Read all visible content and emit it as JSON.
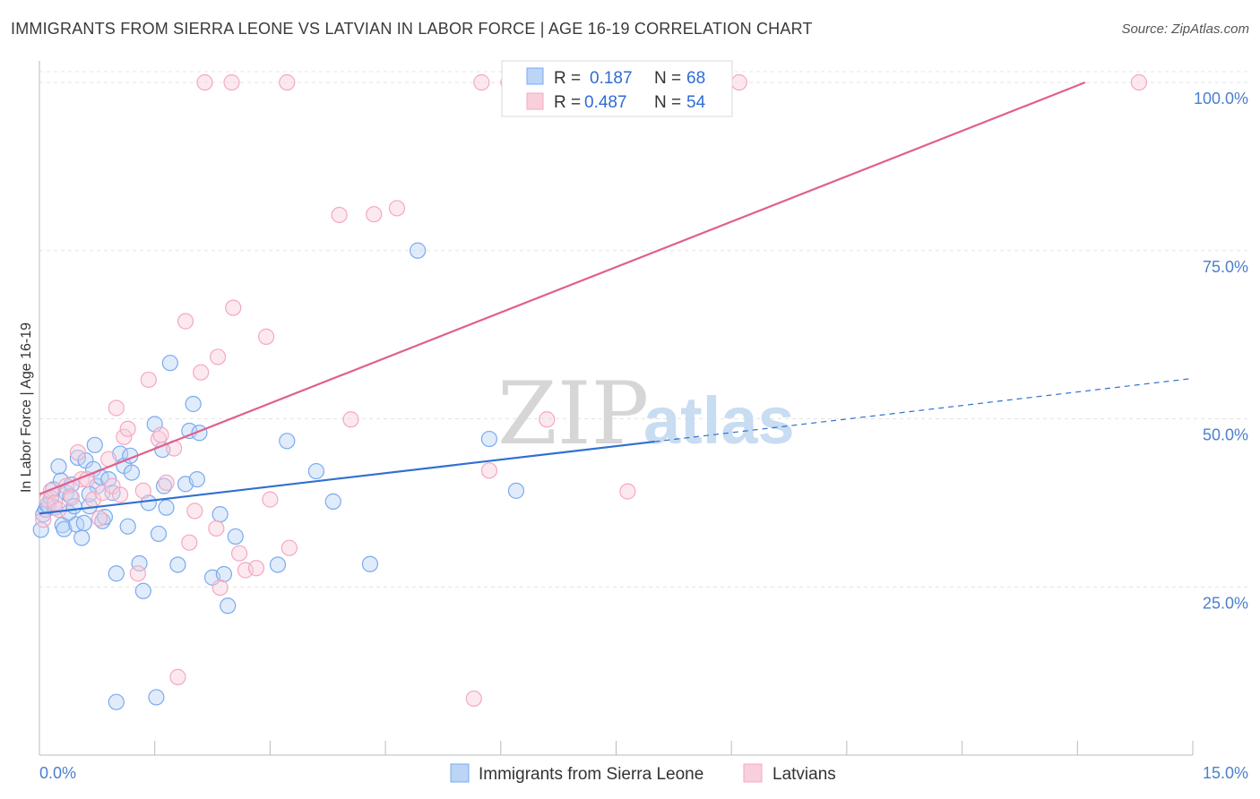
{
  "header": {
    "title": "IMMIGRANTS FROM SIERRA LEONE VS LATVIAN IN LABOR FORCE | AGE 16-19 CORRELATION CHART",
    "source": "Source: ZipAtlas.com"
  },
  "watermark": {
    "part1": "ZIP",
    "part2": "atlas"
  },
  "chart_data": {
    "type": "scatter",
    "title": "IMMIGRANTS FROM SIERRA LEONE VS LATVIAN IN LABOR FORCE | AGE 16-19 CORRELATION CHART",
    "ylabel": "In Labor Force | Age 16-19",
    "xlim": [
      0,
      15
    ],
    "ylim": [
      0,
      102
    ],
    "x_tick_labels": [
      "0.0%",
      "15.0%"
    ],
    "y_ticks": [
      25,
      50,
      75,
      100
    ],
    "y_tick_labels": [
      "25.0%",
      "50.0%",
      "75.0%",
      "100.0%"
    ],
    "grid": true,
    "legend_position": "top-center",
    "series": [
      {
        "name": "Immigrants from Sierra Leone",
        "color": "#7aaaf0",
        "line_color": "#2f70d0",
        "R": "0.187",
        "N": "68",
        "trend": {
          "x0": 0,
          "y0": 35.9,
          "x1": 8.0,
          "y1": 46.6,
          "dash_to_x": 15.0,
          "dash_to_y": 56.0
        },
        "points": [
          [
            0.02,
            33.5
          ],
          [
            0.05,
            35.8
          ],
          [
            0.08,
            36.5
          ],
          [
            0.12,
            37.0
          ],
          [
            0.15,
            38.2
          ],
          [
            0.18,
            39.5
          ],
          [
            0.2,
            36.8
          ],
          [
            0.25,
            42.9
          ],
          [
            0.28,
            40.8
          ],
          [
            0.3,
            34.2
          ],
          [
            0.32,
            33.6
          ],
          [
            0.35,
            39.0
          ],
          [
            0.38,
            36.0
          ],
          [
            0.4,
            38.5
          ],
          [
            0.45,
            37.0
          ],
          [
            0.48,
            34.3
          ],
          [
            0.5,
            44.2
          ],
          [
            0.55,
            32.3
          ],
          [
            0.58,
            34.5
          ],
          [
            0.6,
            43.8
          ],
          [
            0.65,
            37.0
          ],
          [
            0.7,
            42.5
          ],
          [
            0.72,
            46.1
          ],
          [
            0.75,
            40.0
          ],
          [
            0.8,
            41.3
          ],
          [
            0.82,
            34.8
          ],
          [
            0.85,
            35.4
          ],
          [
            0.9,
            41.0
          ],
          [
            0.95,
            39.0
          ],
          [
            1.0,
            27.0
          ],
          [
            1.05,
            44.8
          ],
          [
            1.1,
            43.0
          ],
          [
            1.15,
            34.0
          ],
          [
            1.18,
            44.5
          ],
          [
            1.2,
            42.0
          ],
          [
            1.3,
            28.5
          ],
          [
            1.35,
            24.4
          ],
          [
            1.42,
            37.5
          ],
          [
            1.5,
            49.2
          ],
          [
            1.52,
            8.6
          ],
          [
            1.55,
            32.9
          ],
          [
            1.6,
            45.4
          ],
          [
            1.62,
            40.0
          ],
          [
            1.65,
            36.8
          ],
          [
            1.7,
            58.3
          ],
          [
            1.8,
            28.3
          ],
          [
            1.9,
            40.3
          ],
          [
            1.95,
            48.2
          ],
          [
            2.0,
            52.2
          ],
          [
            2.05,
            41.0
          ],
          [
            2.08,
            47.9
          ],
          [
            2.25,
            26.4
          ],
          [
            2.35,
            35.8
          ],
          [
            2.4,
            26.9
          ],
          [
            2.45,
            22.2
          ],
          [
            2.55,
            32.5
          ],
          [
            3.1,
            28.3
          ],
          [
            3.22,
            46.7
          ],
          [
            3.6,
            42.2
          ],
          [
            3.82,
            37.7
          ],
          [
            4.3,
            28.4
          ],
          [
            4.92,
            75.0
          ],
          [
            5.85,
            47.0
          ],
          [
            6.2,
            39.3
          ],
          [
            0.1,
            37.2
          ],
          [
            0.42,
            40.2
          ],
          [
            1.0,
            7.9
          ],
          [
            0.65,
            38.8
          ]
        ]
      },
      {
        "name": "Latvians",
        "color": "#f4a8c0",
        "line_color": "#e0608e",
        "R": "0.487",
        "N": "54",
        "trend": {
          "x0": 0,
          "y0": 38.8,
          "x1": 13.6,
          "y1": 100.0
        },
        "points": [
          [
            0.05,
            35.0
          ],
          [
            0.1,
            38.0
          ],
          [
            0.15,
            39.3
          ],
          [
            0.2,
            37.5
          ],
          [
            0.25,
            36.5
          ],
          [
            0.35,
            40.0
          ],
          [
            0.42,
            38.3
          ],
          [
            0.5,
            45.0
          ],
          [
            0.55,
            41.0
          ],
          [
            0.62,
            41.0
          ],
          [
            0.7,
            38.0
          ],
          [
            0.78,
            35.2
          ],
          [
            0.82,
            39.0
          ],
          [
            0.9,
            44.0
          ],
          [
            0.95,
            40.0
          ],
          [
            1.0,
            51.6
          ],
          [
            1.05,
            38.7
          ],
          [
            1.1,
            47.3
          ],
          [
            1.15,
            48.5
          ],
          [
            1.28,
            27.0
          ],
          [
            1.35,
            39.3
          ],
          [
            1.42,
            55.8
          ],
          [
            1.55,
            47.0
          ],
          [
            1.58,
            47.6
          ],
          [
            1.65,
            40.5
          ],
          [
            1.75,
            45.6
          ],
          [
            1.8,
            11.6
          ],
          [
            1.9,
            64.5
          ],
          [
            1.95,
            31.6
          ],
          [
            2.02,
            36.3
          ],
          [
            2.1,
            56.9
          ],
          [
            2.15,
            100.0
          ],
          [
            2.3,
            33.7
          ],
          [
            2.32,
            59.2
          ],
          [
            2.35,
            24.9
          ],
          [
            2.5,
            100.0
          ],
          [
            2.52,
            66.5
          ],
          [
            2.6,
            30.0
          ],
          [
            2.68,
            27.5
          ],
          [
            2.82,
            27.8
          ],
          [
            2.95,
            62.2
          ],
          [
            3.0,
            38.0
          ],
          [
            3.22,
            100.0
          ],
          [
            3.25,
            30.8
          ],
          [
            3.9,
            80.3
          ],
          [
            4.05,
            49.9
          ],
          [
            4.35,
            80.4
          ],
          [
            4.65,
            81.3
          ],
          [
            5.65,
            8.4
          ],
          [
            5.75,
            100.0
          ],
          [
            5.85,
            42.3
          ],
          [
            6.6,
            49.9
          ],
          [
            7.65,
            39.2
          ],
          [
            9.1,
            100.0
          ]
        ],
        "extra_points": [
          [
            14.3,
            100.0
          ],
          [
            6.1,
            100.0
          ]
        ]
      }
    ]
  }
}
